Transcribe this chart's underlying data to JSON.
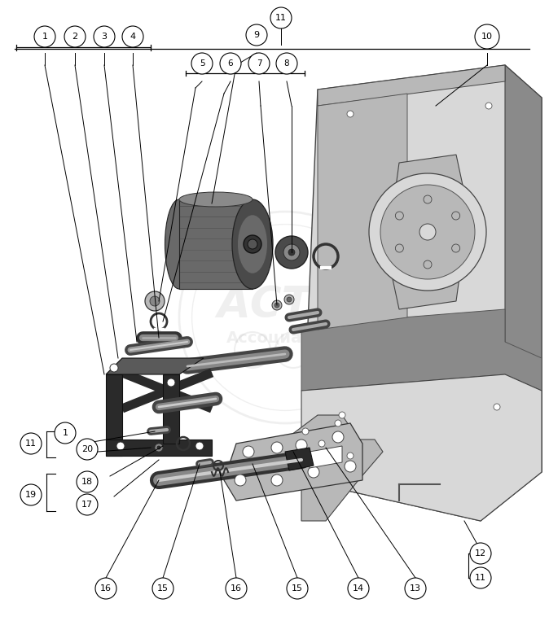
{
  "fig_width": 6.74,
  "fig_height": 7.63,
  "dpi": 100,
  "bg_color": "#ffffff",
  "drum_dark": "#4a4a4a",
  "drum_mid": "#696969",
  "drum_light": "#8a8a8a",
  "body_light": "#d8d8d8",
  "body_mid": "#b8b8b8",
  "body_dark": "#8a8a8a",
  "bracket_dark": "#2a2a2a",
  "bracket_mid": "#5a5a5a",
  "part_gray": "#aaaaaa",
  "wm_color": "#aaaaaa",
  "wm_alpha": 0.18
}
